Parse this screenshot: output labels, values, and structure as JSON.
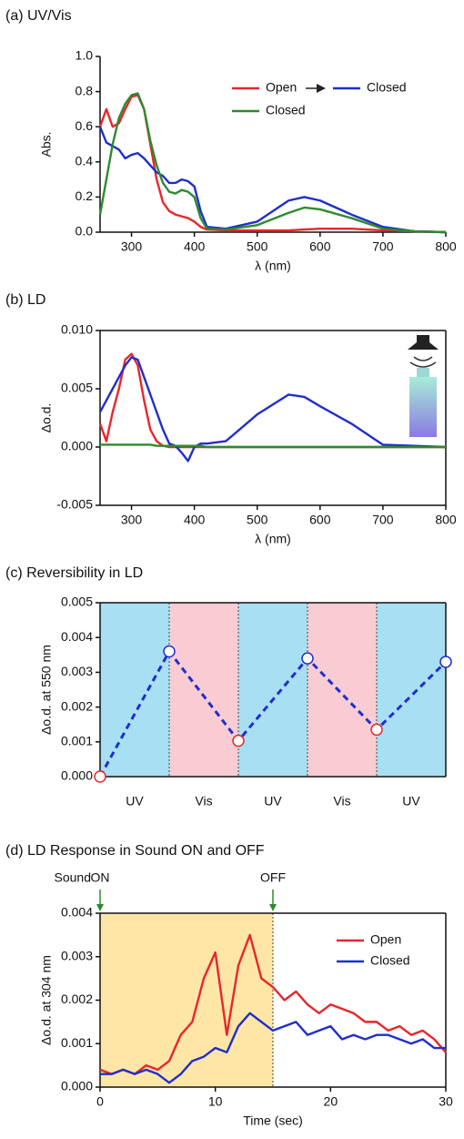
{
  "chart_data": [
    {
      "type": "line",
      "title": "(a) UV/Vis",
      "x_label": "λ (nm)",
      "y_label": "Abs.",
      "x": [
        250,
        260,
        270,
        280,
        290,
        300,
        310,
        320,
        330,
        340,
        350,
        360,
        370,
        380,
        390,
        400,
        410,
        420,
        450,
        500,
        550,
        575,
        600,
        650,
        700,
        750,
        800
      ],
      "series": [
        {
          "name": "Open",
          "color": "#e8262b",
          "values": [
            0.6,
            0.7,
            0.6,
            0.62,
            0.7,
            0.77,
            0.78,
            0.7,
            0.5,
            0.3,
            0.17,
            0.12,
            0.1,
            0.09,
            0.08,
            0.06,
            0.03,
            0.015,
            0.01,
            0.01,
            0.01,
            0.015,
            0.02,
            0.02,
            0.01,
            0.005,
            0
          ]
        },
        {
          "name": "Closed",
          "color": "#1f2fcc",
          "values": [
            0.6,
            0.51,
            0.49,
            0.47,
            0.42,
            0.44,
            0.45,
            0.42,
            0.38,
            0.34,
            0.32,
            0.28,
            0.28,
            0.3,
            0.29,
            0.26,
            0.12,
            0.03,
            0.02,
            0.06,
            0.18,
            0.2,
            0.18,
            0.1,
            0.03,
            0.005,
            0
          ]
        },
        {
          "name": "Closed",
          "color": "#2e8a2e",
          "values": [
            0.1,
            0.3,
            0.5,
            0.65,
            0.73,
            0.78,
            0.79,
            0.7,
            0.52,
            0.38,
            0.28,
            0.23,
            0.22,
            0.24,
            0.23,
            0.2,
            0.08,
            0.02,
            0.015,
            0.04,
            0.11,
            0.14,
            0.13,
            0.08,
            0.02,
            0.005,
            0
          ]
        }
      ],
      "xlim": [
        250,
        800
      ],
      "xticks": [
        300,
        400,
        500,
        600,
        700,
        800
      ],
      "ylim": [
        0,
        1
      ],
      "yticks": [
        {
          "value": 0,
          "label": "0.0"
        },
        0.2,
        0.4,
        0.6,
        0.8,
        {
          "value": 1,
          "label": "1.0"
        }
      ]
    },
    {
      "type": "line",
      "title": "(b) LD",
      "x_label": "λ (nm)",
      "y_label": "Δo.d.",
      "x": [
        250,
        260,
        270,
        280,
        290,
        300,
        310,
        320,
        330,
        340,
        350,
        360,
        370,
        380,
        390,
        400,
        410,
        420,
        450,
        500,
        550,
        575,
        600,
        650,
        700,
        750,
        800
      ],
      "series": [
        {
          "name": "Open",
          "color": "#e8262b",
          "values": [
            0.002,
            0.0005,
            0.003,
            0.005,
            0.0075,
            0.008,
            0.007,
            0.004,
            0.0015,
            0.0005,
            0.0001,
            0,
            0,
            0,
            0,
            0,
            0,
            0,
            0,
            0,
            0,
            0,
            0,
            0,
            0,
            0,
            0
          ]
        },
        {
          "name": "Closed",
          "color": "#1f2fcc",
          "values": [
            0.003,
            0.004,
            0.005,
            0.006,
            0.007,
            0.0077,
            0.0075,
            0.006,
            0.0045,
            0.003,
            0.0015,
            0.0003,
            0.0001,
            -0.0005,
            -0.0012,
            0,
            0.0003,
            0.0003,
            0.0005,
            0.0028,
            0.0045,
            0.0043,
            0.0035,
            0.002,
            0.0002,
            0.0001,
            0
          ]
        },
        {
          "name": "Closed",
          "color": "#2e8a2e",
          "values": [
            0.0002,
            0.0002,
            0.0002,
            0.0002,
            0.0002,
            0.0002,
            0.0002,
            0.0002,
            0.0002,
            0.0001,
            0.0001,
            0.0001,
            0.0001,
            0.0001,
            0.0001,
            0.0001,
            0.0001,
            0,
            0,
            0,
            0,
            0,
            0,
            0,
            0,
            0,
            0
          ]
        }
      ],
      "xlim": [
        250,
        800
      ],
      "xticks": [
        300,
        400,
        500,
        600,
        700,
        800
      ],
      "ylim": [
        -0.005,
        0.01
      ],
      "yticks": [
        -0.005,
        {
          "value": 0,
          "label": "0.000"
        },
        0.005,
        {
          "value": 0.01,
          "label": "0.010"
        }
      ]
    },
    {
      "type": "line",
      "title": "(c) Reversibility in LD",
      "y_label": "Δo.d. at 550 nm",
      "bands": [
        {
          "label": "UV",
          "color": "#a8dff2",
          "text_color": "#2a2aa8"
        },
        {
          "label": "Vis",
          "color": "#f9ccd3",
          "text_color": "#d0202a"
        },
        {
          "label": "UV",
          "color": "#a8dff2",
          "text_color": "#2a2aa8"
        },
        {
          "label": "Vis",
          "color": "#f9ccd3",
          "text_color": "#d0202a"
        },
        {
          "label": "UV",
          "color": "#a8dff2",
          "text_color": "#2a2aa8"
        }
      ],
      "series": [
        {
          "color": "#1f2fcc",
          "values": [
            0,
            0.0036,
            0.00103,
            0.0034,
            0.00135,
            0.0033
          ],
          "point_colors": [
            "#e8262b",
            "#1f2fcc",
            "#e8262b",
            "#1f2fcc",
            "#e8262b",
            "#1f2fcc"
          ]
        }
      ],
      "ylim": [
        0,
        0.005
      ],
      "yticks": [
        {
          "value": 0,
          "label": "0.000"
        },
        0.001,
        0.002,
        0.003,
        0.004,
        0.005
      ]
    },
    {
      "type": "line",
      "title": "(d) LD Response in Sound ON and OFF",
      "x_label": "Time (sec)",
      "y_label": "Δo.d. at 304 nm",
      "annotation_prefix": "Sound",
      "annotation_color": "#2e8a2e",
      "shade_color": "#fde6a6",
      "annotations": [
        {
          "text": "ON",
          "x": 0
        },
        {
          "text": "OFF",
          "x": 15
        }
      ],
      "x": [
        0,
        1,
        2,
        3,
        4,
        5,
        6,
        7,
        8,
        9,
        10,
        11,
        12,
        13,
        14,
        15,
        16,
        17,
        18,
        19,
        20,
        21,
        22,
        23,
        24,
        25,
        26,
        27,
        28,
        29,
        30
      ],
      "series": [
        {
          "name": "Open",
          "color": "#e8262b",
          "values": [
            0.0004,
            0.0003,
            0.0004,
            0.0003,
            0.0005,
            0.0004,
            0.0006,
            0.0012,
            0.0015,
            0.0025,
            0.0031,
            0.0012,
            0.0028,
            0.0035,
            0.0025,
            0.0023,
            0.002,
            0.0022,
            0.0019,
            0.0017,
            0.0019,
            0.0018,
            0.0017,
            0.0015,
            0.0015,
            0.0013,
            0.0014,
            0.0012,
            0.0013,
            0.0011,
            0.0008
          ]
        },
        {
          "name": "Closed",
          "color": "#1f2fcc",
          "values": [
            0.0003,
            0.0003,
            0.0004,
            0.0003,
            0.0004,
            0.0003,
            0.0001,
            0.0003,
            0.0006,
            0.0007,
            0.0009,
            0.0008,
            0.0014,
            0.0017,
            0.0015,
            0.0013,
            0.0014,
            0.0015,
            0.0012,
            0.0013,
            0.0014,
            0.0011,
            0.0012,
            0.0011,
            0.0012,
            0.0012,
            0.0011,
            0.001,
            0.0011,
            0.0009,
            0.0009
          ]
        }
      ],
      "xlim": [
        0,
        30
      ],
      "xticks": [
        0,
        10,
        20,
        30
      ],
      "ylim": [
        0,
        0.004
      ],
      "yticks": [
        {
          "value": 0,
          "label": "0.000"
        },
        0.001,
        0.002,
        0.003,
        0.004
      ]
    }
  ]
}
